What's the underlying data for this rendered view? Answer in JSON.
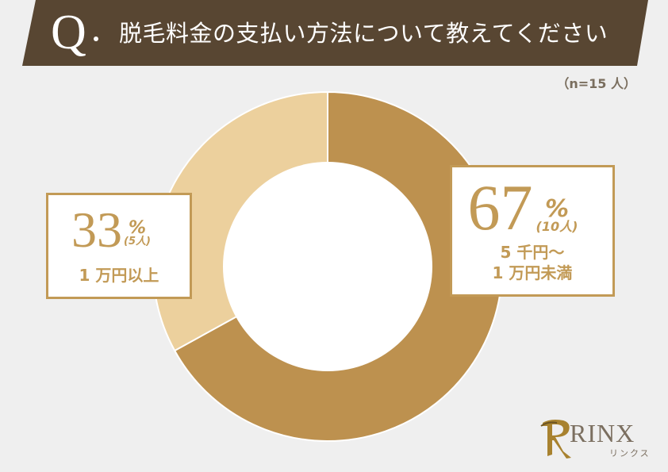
{
  "header": {
    "q_mark": "Q",
    "title": "脱毛料金の支払い方法について教えてください",
    "background_color": "#584632"
  },
  "sample_size": "（n=15 人）",
  "chart_data": {
    "type": "pie",
    "subtype": "donut",
    "title": "脱毛料金の支払い方法について教えてください",
    "n": 15,
    "categories": [
      "5千円〜1万円未満",
      "1万円以上"
    ],
    "values": [
      67,
      33
    ],
    "counts": [
      10,
      5
    ],
    "unit": "%",
    "colors": [
      "#bd914f",
      "#ecd09d"
    ],
    "start_angle_deg": 0,
    "direction": "clockwise",
    "legend": "callout boxes"
  },
  "labels": {
    "left": {
      "percent": "33",
      "percent_sign": "%",
      "count": "(5人)",
      "category": "1 万円以上"
    },
    "right": {
      "percent": "67",
      "percent_sign": "%",
      "count": "(10人)",
      "category_line1": "5 千円〜",
      "category_line2": "1 万円未満"
    }
  },
  "logo": {
    "name": "RINX",
    "kana": "リンクス"
  }
}
